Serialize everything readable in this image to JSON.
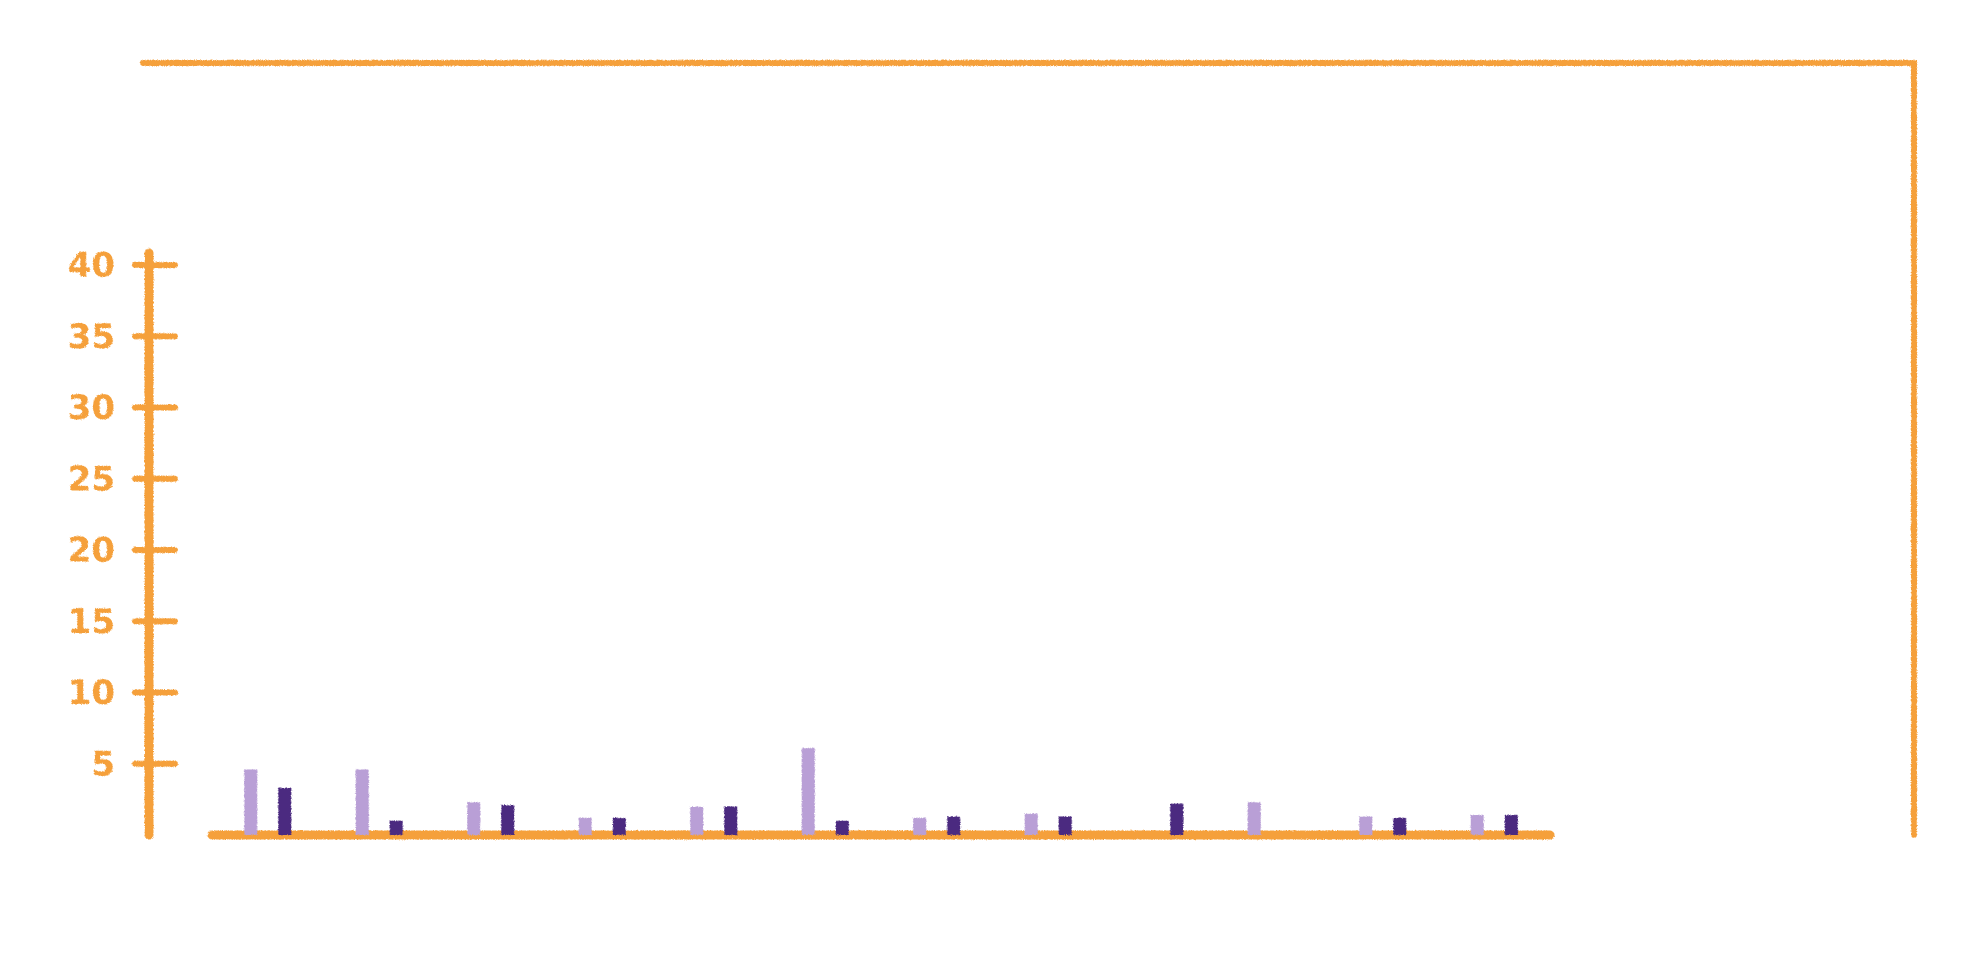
{
  "chart_data": {
    "type": "bar",
    "categories": [
      null,
      null,
      null,
      null,
      null,
      null,
      null,
      null,
      null,
      null,
      null,
      null
    ],
    "series": [
      {
        "color": "#b99fd6",
        "values": [
          4.6,
          4.6,
          2.3,
          1.2,
          2.0,
          6.1,
          1.2,
          1.5,
          0,
          2.3,
          1.3,
          1.4
        ]
      },
      {
        "color": "#4b2a80",
        "values": [
          3.3,
          1.0,
          2.1,
          1.2,
          2.0,
          1.0,
          1.3,
          1.3,
          2.2,
          0,
          1.2,
          1.4
        ]
      }
    ],
    "ylim": [
      0,
      40
    ],
    "yticks": [
      5,
      10,
      15,
      20,
      25,
      30,
      35,
      40
    ],
    "axis_color": "#f5a03a"
  }
}
